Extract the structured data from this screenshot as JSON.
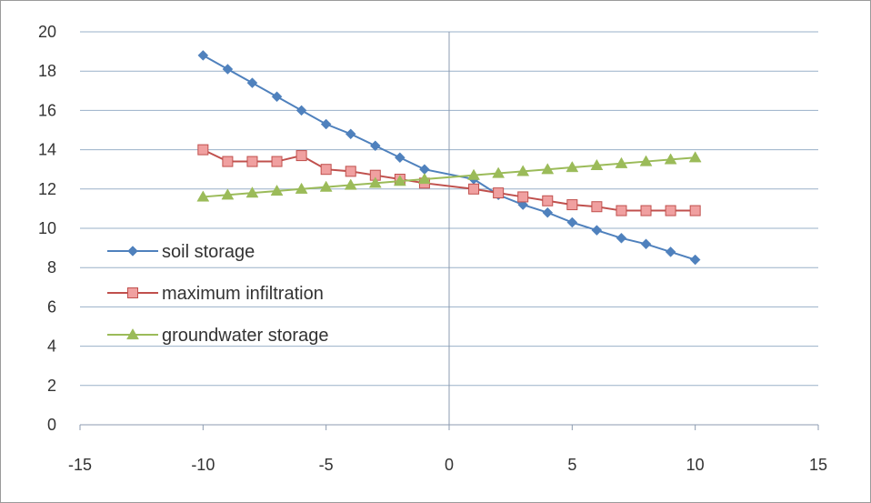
{
  "chart_data": {
    "type": "line",
    "title": "",
    "xlabel": "",
    "ylabel": "",
    "xlim": [
      -15,
      15
    ],
    "ylim": [
      0,
      20
    ],
    "xticks": [
      -15,
      -10,
      -5,
      0,
      5,
      10,
      15
    ],
    "yticks": [
      0,
      2,
      4,
      6,
      8,
      10,
      12,
      14,
      16,
      18,
      20
    ],
    "xtick_labels": [
      "-15",
      "-10",
      "-5",
      "0",
      "5",
      "10",
      "15"
    ],
    "ytick_labels": [
      "0",
      "2",
      "4",
      "6",
      "8",
      "10",
      "12",
      "14",
      "16",
      "18",
      "20"
    ],
    "grid": "horizontal",
    "legend_position": "lower-left",
    "x": [
      -10,
      -9,
      -8,
      -7,
      -6,
      -5,
      -4,
      -3,
      -2,
      -1,
      1,
      2,
      3,
      4,
      5,
      6,
      7,
      8,
      9,
      10
    ],
    "series": [
      {
        "name": "soil storage",
        "color": "#4f81bd",
        "marker": "diamond",
        "values": [
          18.8,
          18.1,
          17.4,
          16.7,
          16.0,
          15.3,
          14.8,
          14.2,
          13.6,
          13.0,
          12.5,
          11.7,
          11.2,
          10.8,
          10.3,
          9.9,
          9.5,
          9.2,
          8.8,
          8.4
        ]
      },
      {
        "name": "maximum infiltration",
        "color": "#c0504d",
        "marker_fill": "#f0a0a0",
        "marker": "square",
        "values": [
          14.0,
          13.4,
          13.4,
          13.4,
          13.7,
          13.0,
          12.9,
          12.7,
          12.5,
          12.3,
          12.0,
          11.8,
          11.6,
          11.4,
          11.2,
          11.1,
          10.9,
          10.9,
          10.9,
          10.9
        ]
      },
      {
        "name": "groundwater storage",
        "color": "#9bbb59",
        "marker": "triangle",
        "values": [
          11.6,
          11.7,
          11.8,
          11.9,
          12.0,
          12.1,
          12.2,
          12.3,
          12.4,
          12.5,
          12.7,
          12.8,
          12.9,
          13.0,
          13.1,
          13.2,
          13.3,
          13.4,
          13.5,
          13.6
        ]
      }
    ]
  }
}
